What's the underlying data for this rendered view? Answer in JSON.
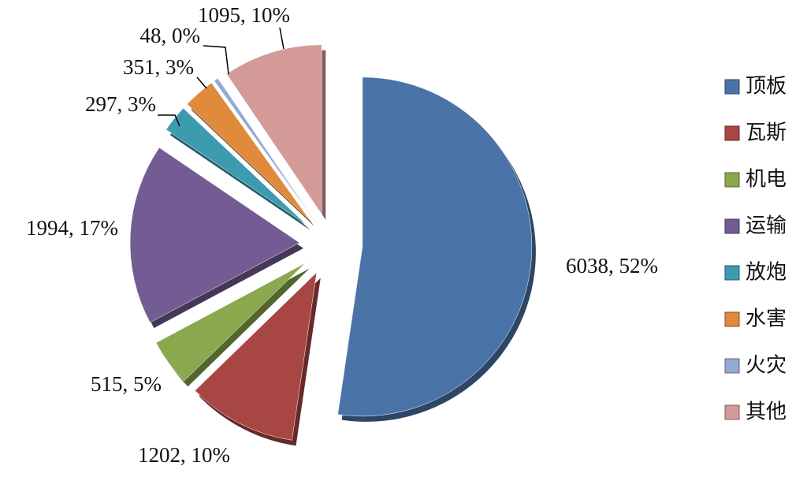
{
  "chart_data": {
    "type": "pie",
    "categories": [
      "顶板",
      "瓦斯",
      "机电",
      "运输",
      "放炮",
      "水害",
      "火灾",
      "其他"
    ],
    "values": [
      6038,
      1202,
      515,
      1994,
      297,
      351,
      48,
      1095
    ],
    "value_labels": [
      "6038, 52%",
      "1202, 10%",
      "515, 5%",
      "1994, 17%",
      "297, 3%",
      "351, 3%",
      "48, 0%",
      "1095, 10%"
    ],
    "colors": [
      "#4a74a8",
      "#a84644",
      "#8aa84e",
      "#735b93",
      "#3d9bb0",
      "#e08a3c",
      "#93a9d2",
      "#d49a98"
    ],
    "legend": "right"
  }
}
